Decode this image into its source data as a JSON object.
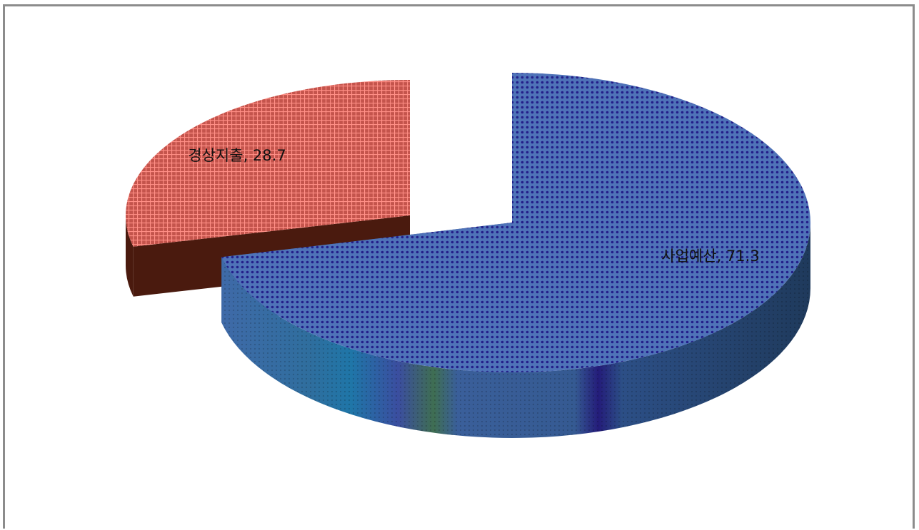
{
  "chart_data": {
    "type": "pie",
    "style": "3d-exploded",
    "slices": [
      {
        "label": "사업예산",
        "value": 71.3,
        "top_color": "#4f73b8",
        "side_color": "#2c4f86",
        "pattern_color": "#241f8a"
      },
      {
        "label": "경상지출",
        "value": 28.7,
        "top_color": "#c85a52",
        "side_color": "#4a1a0e",
        "pattern_color": "#ff8a80"
      }
    ],
    "data_labels": [
      "사업예산, 71.3",
      "경상지출, 28.7"
    ],
    "legend": "none"
  }
}
